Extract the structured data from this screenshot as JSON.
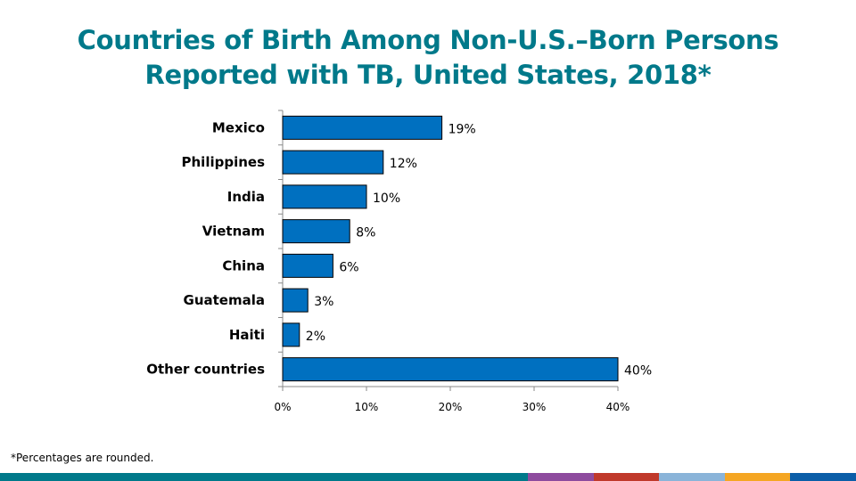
{
  "title": {
    "line1": "Countries of Birth Among Non-U.S.–Born Persons",
    "line2": "Reported with TB, United States, 2018*"
  },
  "footnote": "*Percentages are rounded.",
  "colors": {
    "title": "#00798a",
    "bar": "#0070c0",
    "footer": [
      "#00798a",
      "#8e4b9e",
      "#c0392b",
      "#8ab4d9",
      "#f5a623",
      "#0b5ea8"
    ]
  },
  "chart_data": {
    "type": "bar",
    "orientation": "horizontal",
    "categories": [
      "Mexico",
      "Philippines",
      "India",
      "Vietnam",
      "China",
      "Guatemala",
      "Haiti",
      "Other countries"
    ],
    "values": [
      19,
      12,
      10,
      8,
      6,
      3,
      2,
      40
    ],
    "data_labels": [
      "19%",
      "12%",
      "10%",
      "8%",
      "6%",
      "3%",
      "2%",
      "40%"
    ],
    "xlim": [
      0,
      40
    ],
    "xticks": [
      "0%",
      "10%",
      "20%",
      "30%",
      "40%"
    ],
    "xlabel": "",
    "ylabel": "",
    "grid": false,
    "legend": "none"
  }
}
